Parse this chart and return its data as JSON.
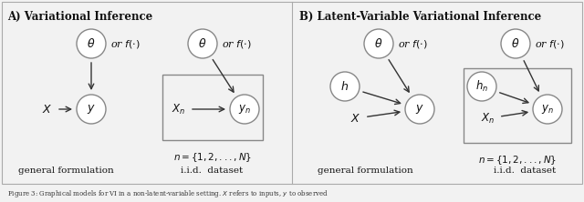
{
  "panel_A_title": "A) Variational Inference",
  "panel_B_title": "B) Latent-Variable Variational Inference",
  "label_general": "general formulation",
  "label_iid": "i.i.d.  dataset",
  "plate_label_A": "n = \\{1, 2, ..., N\\}",
  "plate_label_B": "n = \\{1, 2, ..., N\\}",
  "bg_color": "#f2f2f2",
  "node_face": "#ffffff",
  "node_edge": "#888888",
  "arrow_color": "#333333",
  "text_color": "#111111",
  "fig_width": 6.4,
  "fig_height": 2.22
}
